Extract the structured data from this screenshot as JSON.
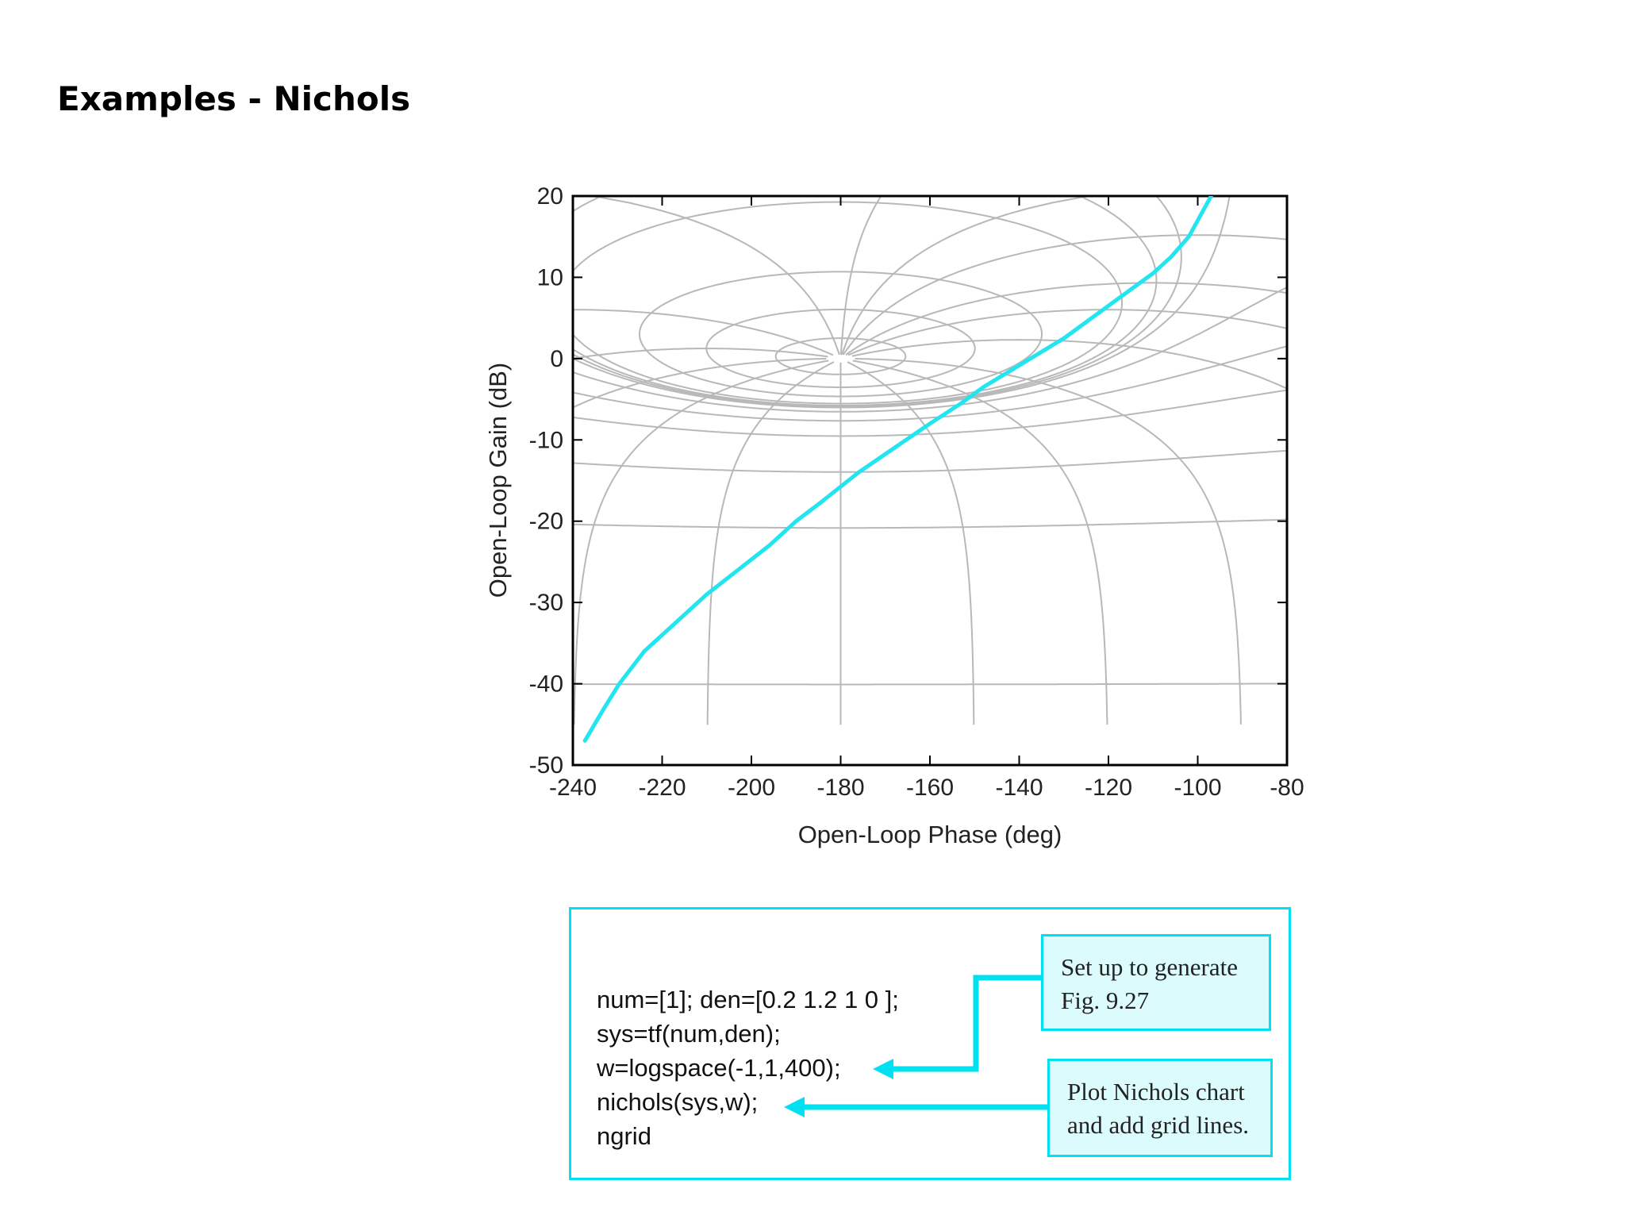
{
  "slide": {
    "title": "Examples - Nichols"
  },
  "chart_data": {
    "type": "line",
    "title": "",
    "xlabel": "Open-Loop Phase (deg)",
    "ylabel": "Open-Loop Gain (dB)",
    "xlim": [
      -240,
      -80
    ],
    "ylim": [
      -50,
      20
    ],
    "xticks": [
      -240,
      -220,
      -200,
      -180,
      -160,
      -140,
      -120,
      -100,
      -80
    ],
    "yticks": [
      -50,
      -40,
      -30,
      -20,
      -10,
      0,
      10,
      20
    ],
    "grid": "ngrid (closed-loop M and N contours)",
    "series": [
      {
        "color": "#22e5f0",
        "x": [
          -237.3,
          -233,
          -229.6,
          -224,
          -216,
          -210,
          -203,
          -196,
          -190,
          -184,
          -176,
          -168,
          -160,
          -153,
          -148,
          -142,
          -136,
          -130,
          -125,
          -120,
          -115,
          -110,
          -106,
          -102,
          -99.5,
          -97
        ],
        "y": [
          -47,
          -43,
          -40,
          -36,
          -32,
          -29,
          -26,
          -23,
          -20,
          -17.5,
          -14,
          -11,
          -8,
          -5.5,
          -3.5,
          -1.5,
          0.5,
          2.5,
          4.5,
          6.5,
          8.5,
          10.5,
          12.5,
          15,
          17.5,
          20
        ]
      }
    ]
  },
  "code": {
    "lines": [
      "num=[1]; den=[0.2 1.2 1 0 ];",
      "sys=tf(num,den);",
      "w=logspace(-1,1,400);",
      "nichols(sys,w);",
      "ngrid"
    ]
  },
  "notes": [
    {
      "lines": [
        "Set up to generate",
        "Fig. 9.27"
      ]
    },
    {
      "lines": [
        "Plot Nichols chart",
        "and add grid lines."
      ]
    }
  ],
  "colors": {
    "accent": "#00e0f0",
    "curve": "#22e5f0",
    "grid": "#b8b8b8",
    "note_bg": "#dcfbfd"
  }
}
